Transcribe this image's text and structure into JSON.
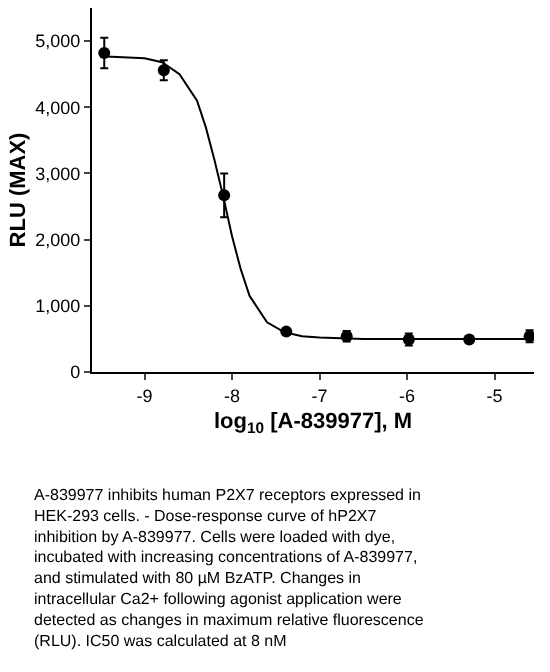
{
  "chart_data": {
    "type": "scatter",
    "xlabel": "log$_{10}$ [A-839977], M",
    "ylabel": "RLU (MAX)",
    "xlim": [
      -9.6,
      -4.55
    ],
    "xticks": [
      -9,
      -8,
      -7,
      -6,
      -5
    ],
    "ylim": [
      0,
      5500
    ],
    "yticks": [
      0,
      {
        "value": 1000,
        "label": "1,000"
      },
      {
        "value": 2000,
        "label": "2,000"
      },
      {
        "value": 3000,
        "label": "3,000"
      },
      {
        "value": 4000,
        "label": "4,000"
      },
      {
        "value": 5000,
        "label": "5,000"
      }
    ],
    "marker": "circle",
    "series": [
      {
        "color": "#000000",
        "x": [
          -9.46,
          -8.78,
          -8.09,
          -7.38,
          -6.69,
          -5.98,
          -5.29,
          -4.6
        ],
        "values": [
          4820,
          4560,
          2670,
          610,
          540,
          490,
          490,
          540
        ],
        "errors": [
          230,
          150,
          330,
          30,
          80,
          90,
          null,
          90
        ]
      },
      {
        "type": "line",
        "color": "#000000",
        "marker": "none",
        "line_style": "solid",
        "x": [
          -9.5,
          -9.0,
          -8.8,
          -8.6,
          -8.4,
          -8.3,
          -8.2,
          -8.1,
          -8.0,
          -7.9,
          -7.8,
          -7.6,
          -7.4,
          -7.2,
          -7.0,
          -6.5,
          -4.6
        ],
        "values": [
          4770,
          4740,
          4680,
          4500,
          4100,
          3700,
          3200,
          2650,
          2050,
          1550,
          1150,
          750,
          600,
          540,
          520,
          500,
          500
        ]
      }
    ],
    "annotations": [
      "A-839977 inhibits human P2X7 receptors expressed in HEK-293 cells. - Dose-response curve of hP2X7 inhibition by A-839977. Cells were loaded with dye, incubated with increasing concentrations of A-839977, and stimulated with 80 µM BzATP. Changes in intracellular Ca2+ following agonist application were detected as changes in maximum relative fluorescence (RLU). IC50 was calculated at 8 nM"
    ]
  }
}
